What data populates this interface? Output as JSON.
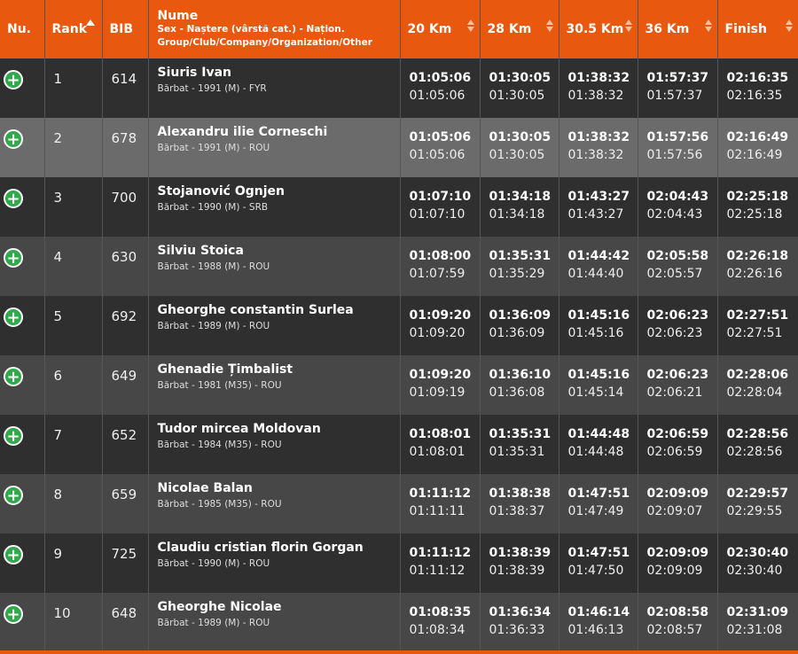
{
  "columns": {
    "nu": "Nu.",
    "rank": "Rank",
    "bib": "BIB",
    "name_main": "Nume",
    "name_sub": "Sex - Naștere (vârstă cat.) - Națion. Group/Club/Company/Organization/Other",
    "c20": "20 Km",
    "c28": "28 Km",
    "c305": "30.5 Km",
    "c36": "36 Km",
    "finish": "Finish"
  },
  "icons": {
    "expand": "plus-circle-icon",
    "sort": "sort-arrows-icon",
    "sort_asc": "sort-ascending-icon"
  },
  "colors": {
    "header_bg": "#e8580e",
    "plus_button": "#2fa94a",
    "highlight_row": "#6b6b6b"
  },
  "rows": [
    {
      "rank": "1",
      "bib": "614",
      "name": "Siuris Ivan",
      "meta": "Bărbat - 1991 (M) - FYR",
      "s20": [
        "01:05:06",
        "01:05:06"
      ],
      "s28": [
        "01:30:05",
        "01:30:05"
      ],
      "s305": [
        "01:38:32",
        "01:38:32"
      ],
      "s36": [
        "01:57:37",
        "01:57:37"
      ],
      "fin": [
        "02:16:35",
        "02:16:35"
      ]
    },
    {
      "rank": "2",
      "bib": "678",
      "name": "Alexandru ilie Corneschi",
      "meta": "Bărbat - 1991 (M) - ROU",
      "s20": [
        "01:05:06",
        "01:05:06"
      ],
      "s28": [
        "01:30:05",
        "01:30:05"
      ],
      "s305": [
        "01:38:32",
        "01:38:32"
      ],
      "s36": [
        "01:57:56",
        "01:57:56"
      ],
      "fin": [
        "02:16:49",
        "02:16:49"
      ]
    },
    {
      "rank": "3",
      "bib": "700",
      "name": "Stojanović Ognjen",
      "meta": "Bărbat - 1990 (M) - SRB",
      "s20": [
        "01:07:10",
        "01:07:10"
      ],
      "s28": [
        "01:34:18",
        "01:34:18"
      ],
      "s305": [
        "01:43:27",
        "01:43:27"
      ],
      "s36": [
        "02:04:43",
        "02:04:43"
      ],
      "fin": [
        "02:25:18",
        "02:25:18"
      ]
    },
    {
      "rank": "4",
      "bib": "630",
      "name": "Silviu Stoica",
      "meta": "Bărbat - 1988 (M) - ROU",
      "s20": [
        "01:08:00",
        "01:07:59"
      ],
      "s28": [
        "01:35:31",
        "01:35:29"
      ],
      "s305": [
        "01:44:42",
        "01:44:40"
      ],
      "s36": [
        "02:05:58",
        "02:05:57"
      ],
      "fin": [
        "02:26:18",
        "02:26:16"
      ]
    },
    {
      "rank": "5",
      "bib": "692",
      "name": "Gheorghe constantin Surlea",
      "meta": "Bărbat - 1989 (M) - ROU",
      "s20": [
        "01:09:20",
        "01:09:20"
      ],
      "s28": [
        "01:36:09",
        "01:36:09"
      ],
      "s305": [
        "01:45:16",
        "01:45:16"
      ],
      "s36": [
        "02:06:23",
        "02:06:23"
      ],
      "fin": [
        "02:27:51",
        "02:27:51"
      ]
    },
    {
      "rank": "6",
      "bib": "649",
      "name": "Ghenadie Țimbalist",
      "meta": "Bărbat - 1981 (M35) - ROU",
      "s20": [
        "01:09:20",
        "01:09:19"
      ],
      "s28": [
        "01:36:10",
        "01:36:08"
      ],
      "s305": [
        "01:45:16",
        "01:45:14"
      ],
      "s36": [
        "02:06:23",
        "02:06:21"
      ],
      "fin": [
        "02:28:06",
        "02:28:04"
      ]
    },
    {
      "rank": "7",
      "bib": "652",
      "name": "Tudor mircea Moldovan",
      "meta": "Bărbat - 1984 (M35) - ROU",
      "s20": [
        "01:08:01",
        "01:08:01"
      ],
      "s28": [
        "01:35:31",
        "01:35:31"
      ],
      "s305": [
        "01:44:48",
        "01:44:48"
      ],
      "s36": [
        "02:06:59",
        "02:06:59"
      ],
      "fin": [
        "02:28:56",
        "02:28:56"
      ]
    },
    {
      "rank": "8",
      "bib": "659",
      "name": "Nicolae Balan",
      "meta": "Bărbat - 1985 (M35) - ROU",
      "s20": [
        "01:11:12",
        "01:11:11"
      ],
      "s28": [
        "01:38:38",
        "01:38:37"
      ],
      "s305": [
        "01:47:51",
        "01:47:49"
      ],
      "s36": [
        "02:09:09",
        "02:09:07"
      ],
      "fin": [
        "02:29:57",
        "02:29:55"
      ]
    },
    {
      "rank": "9",
      "bib": "725",
      "name": "Claudiu cristian florin Gorgan",
      "meta": "Bărbat - 1990 (M) - ROU",
      "s20": [
        "01:11:12",
        "01:11:12"
      ],
      "s28": [
        "01:38:39",
        "01:38:39"
      ],
      "s305": [
        "01:47:51",
        "01:47:50"
      ],
      "s36": [
        "02:09:09",
        "02:09:09"
      ],
      "fin": [
        "02:30:40",
        "02:30:40"
      ]
    },
    {
      "rank": "10",
      "bib": "648",
      "name": "Gheorghe Nicolae",
      "meta": "Bărbat - 1989 (M) - ROU",
      "s20": [
        "01:08:35",
        "01:08:34"
      ],
      "s28": [
        "01:36:34",
        "01:36:33"
      ],
      "s305": [
        "01:46:14",
        "01:46:13"
      ],
      "s36": [
        "02:08:58",
        "02:08:57"
      ],
      "fin": [
        "02:31:09",
        "02:31:08"
      ]
    }
  ]
}
